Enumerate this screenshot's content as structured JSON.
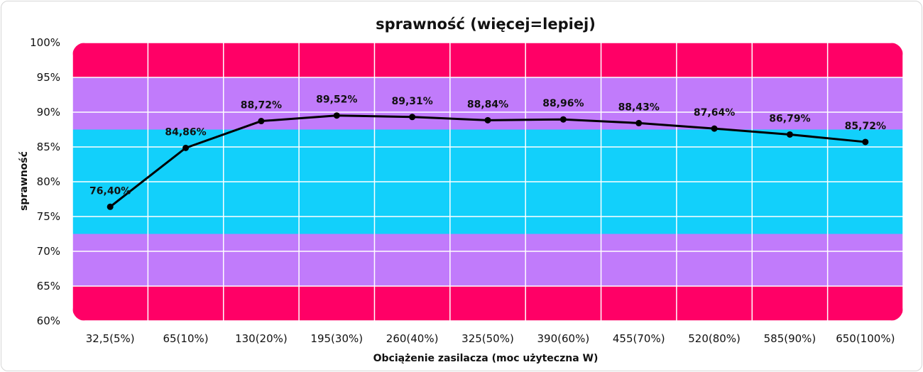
{
  "chart_data": {
    "type": "line",
    "title": "sprawność (więcej=lepiej)",
    "xlabel": "Obciążenie zasilacza (moc użyteczna W)",
    "ylabel": "sprawność",
    "categories": [
      "32,5(5%)",
      "65(10%)",
      "130(20%)",
      "195(30%)",
      "260(40%)",
      "325(50%)",
      "390(60%)",
      "455(70%)",
      "520(80%)",
      "585(90%)",
      "650(100%)"
    ],
    "series": [
      {
        "name": "sprawność",
        "values": [
          76.4,
          84.86,
          88.72,
          89.52,
          89.31,
          88.84,
          88.96,
          88.43,
          87.64,
          86.79,
          85.72
        ],
        "labels": [
          "76,40%",
          "84,86%",
          "88,72%",
          "89,52%",
          "89,31%",
          "88,84%",
          "88,96%",
          "88,43%",
          "87,64%",
          "86,79%",
          "85,72%"
        ],
        "color": "#000000"
      }
    ],
    "ylim": [
      60,
      100
    ],
    "yticks": [
      60,
      65,
      70,
      75,
      80,
      85,
      90,
      95,
      100
    ],
    "ytick_labels": [
      "60%",
      "65%",
      "70%",
      "75%",
      "80%",
      "85%",
      "90%",
      "95%",
      "100%"
    ],
    "bands": [
      {
        "from": 60,
        "to": 65,
        "color": "#ff0066"
      },
      {
        "from": 65,
        "to": 72.5,
        "color": "#c17bfb"
      },
      {
        "from": 72.5,
        "to": 87.5,
        "color": "#12d0fb"
      },
      {
        "from": 87.5,
        "to": 95,
        "color": "#c17bfb"
      },
      {
        "from": 95,
        "to": 100,
        "color": "#ff0066"
      }
    ],
    "grid": true,
    "legend": "none"
  }
}
